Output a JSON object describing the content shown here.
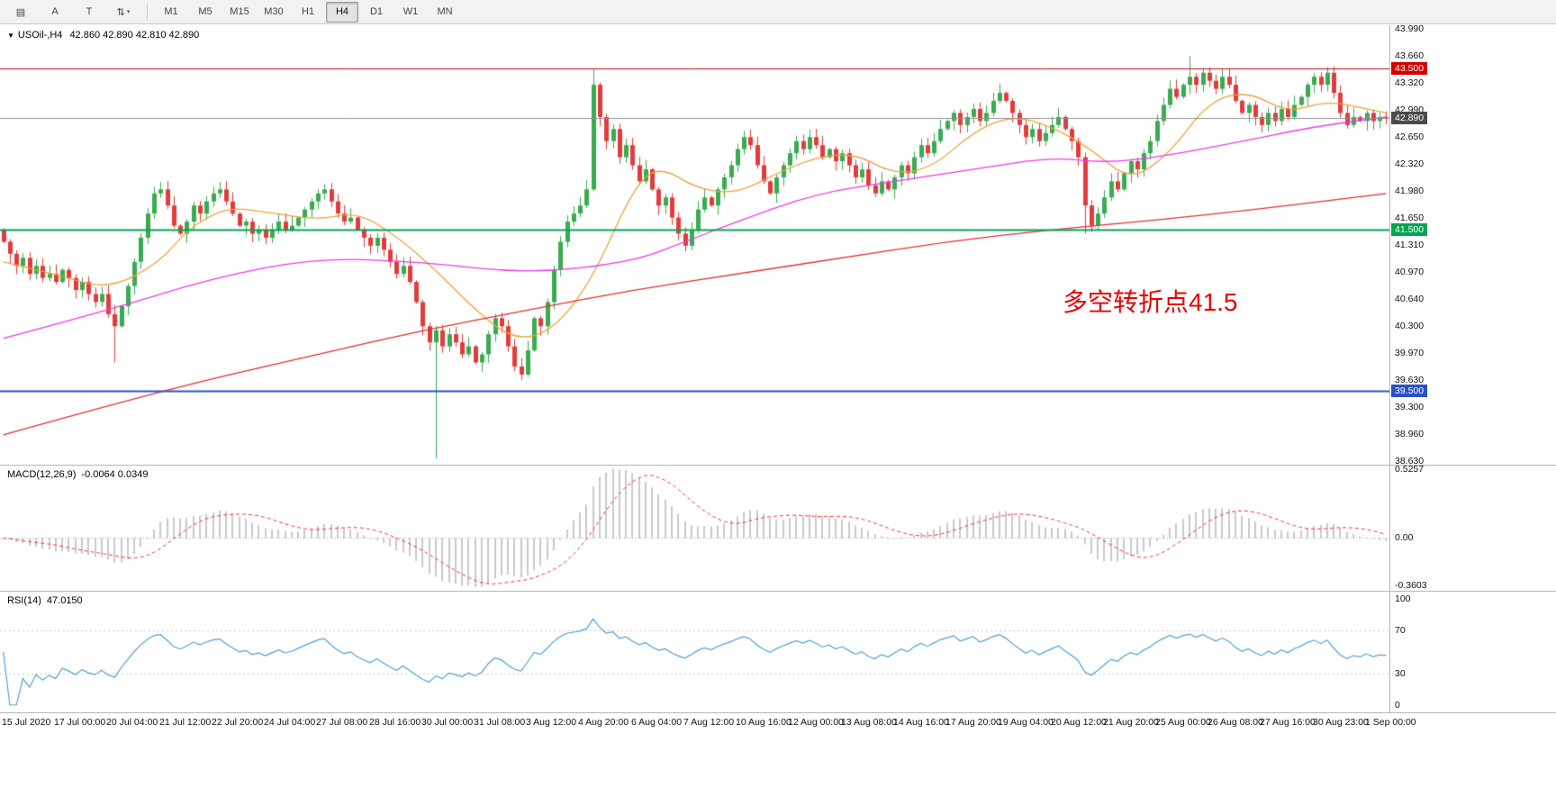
{
  "toolbar": {
    "tools": [
      {
        "name": "chart-grid-icon",
        "glyph": "▤",
        "dropdown": false
      },
      {
        "name": "arrow-tool-button",
        "glyph": "A",
        "dropdown": false
      },
      {
        "name": "text-tool-button",
        "glyph": "T",
        "dropdown": false
      },
      {
        "name": "chart-mode-icon",
        "glyph": "⇅",
        "dropdown": true
      }
    ],
    "timeframes": [
      {
        "label": "M1",
        "active": false
      },
      {
        "label": "M5",
        "active": false
      },
      {
        "label": "M15",
        "active": false
      },
      {
        "label": "M30",
        "active": false
      },
      {
        "label": "H1",
        "active": false
      },
      {
        "label": "H4",
        "active": true
      },
      {
        "label": "D1",
        "active": false
      },
      {
        "label": "W1",
        "active": false
      },
      {
        "label": "MN",
        "active": false
      }
    ]
  },
  "chart": {
    "symbol_period": "USOil-,H4",
    "ohlc": "42.860 42.890 42.810 42.890",
    "annotation": {
      "text": "多空转折点41.5",
      "color": "#e60000"
    },
    "current_price": {
      "price": 42.89,
      "label": "42.890",
      "badge_color": "#4a4a4a"
    }
  },
  "colors": {
    "up": "#3aab50",
    "down": "#e23b3b",
    "ma_fast": "#efa13a",
    "ma_mid": "#e93ce9",
    "ma_slow": "#e03030",
    "macd_hist": "#c9c9c9",
    "macd_signal": "#ff3030",
    "rsi_line": "#4f9fdc",
    "bid_line": "#909090",
    "level_dotted": "#c8c8c8"
  },
  "chart_data": {
    "type": "candlestick",
    "symbol": "USOil",
    "timeframe": "H4",
    "ylim": [
      38.58,
      44.04
    ],
    "first_open": 41.5,
    "closes": [
      41.35,
      41.2,
      41.05,
      41.15,
      40.95,
      41.05,
      40.9,
      40.95,
      40.85,
      41.0,
      40.9,
      40.75,
      40.85,
      40.7,
      40.6,
      40.7,
      40.45,
      40.3,
      40.55,
      40.8,
      41.1,
      41.4,
      41.7,
      41.95,
      42.0,
      41.8,
      41.55,
      41.45,
      41.6,
      41.8,
      41.7,
      41.85,
      41.95,
      42.0,
      41.85,
      41.7,
      41.55,
      41.6,
      41.45,
      41.5,
      41.4,
      41.5,
      41.6,
      41.5,
      41.55,
      41.65,
      41.75,
      41.85,
      41.95,
      42.0,
      41.85,
      41.7,
      41.6,
      41.65,
      41.5,
      41.4,
      41.3,
      41.4,
      41.25,
      41.1,
      40.95,
      41.05,
      40.85,
      40.6,
      40.3,
      40.1,
      40.25,
      40.05,
      40.2,
      40.1,
      39.95,
      40.05,
      39.85,
      39.95,
      40.2,
      40.4,
      40.3,
      40.05,
      39.8,
      39.7,
      40.0,
      40.4,
      40.3,
      40.6,
      41.0,
      41.35,
      41.6,
      41.7,
      41.8,
      42.0,
      43.3,
      42.9,
      42.6,
      42.75,
      42.4,
      42.55,
      42.3,
      42.1,
      42.25,
      42.0,
      41.8,
      41.9,
      41.65,
      41.45,
      41.3,
      41.5,
      41.75,
      41.9,
      41.8,
      42.0,
      42.15,
      42.3,
      42.5,
      42.65,
      42.55,
      42.3,
      42.1,
      41.95,
      42.15,
      42.3,
      42.45,
      42.6,
      42.5,
      42.65,
      42.55,
      42.4,
      42.5,
      42.35,
      42.45,
      42.3,
      42.15,
      42.25,
      42.05,
      41.95,
      42.1,
      42.0,
      42.15,
      42.3,
      42.2,
      42.4,
      42.55,
      42.45,
      42.6,
      42.75,
      42.85,
      42.95,
      42.8,
      42.9,
      43.0,
      42.85,
      42.95,
      43.1,
      43.2,
      43.1,
      42.95,
      42.8,
      42.65,
      42.75,
      42.6,
      42.7,
      42.8,
      42.9,
      42.75,
      42.6,
      42.4,
      41.8,
      41.55,
      41.7,
      41.9,
      42.1,
      42.0,
      42.2,
      42.35,
      42.25,
      42.45,
      42.6,
      42.85,
      43.05,
      43.25,
      43.15,
      43.3,
      43.4,
      43.3,
      43.45,
      43.35,
      43.25,
      43.4,
      43.3,
      43.1,
      42.95,
      43.05,
      42.9,
      42.8,
      42.95,
      42.85,
      43.0,
      42.9,
      43.05,
      43.15,
      43.3,
      43.4,
      43.3,
      43.45,
      43.2,
      42.95,
      42.8,
      42.9,
      42.85,
      42.95,
      42.85,
      42.9,
      42.89
    ],
    "wick_overrides": {
      "17": {
        "low": 39.85
      },
      "66": {
        "low": 38.66
      },
      "79": {
        "low": 39.63
      },
      "90": {
        "high": 43.5
      },
      "165": {
        "low": 41.45
      },
      "181": {
        "high": 43.66
      },
      "202": {
        "high": 43.52
      }
    },
    "ma_lines": [
      {
        "name": "ma-fast-orange",
        "color_key": "ma_fast",
        "width": 1.3,
        "points": [
          [
            0,
            41.1
          ],
          [
            8,
            40.95
          ],
          [
            16,
            40.75
          ],
          [
            24,
            41.1
          ],
          [
            28,
            41.5
          ],
          [
            34,
            41.78
          ],
          [
            40,
            41.72
          ],
          [
            48,
            41.62
          ],
          [
            54,
            41.72
          ],
          [
            60,
            41.42
          ],
          [
            66,
            41.0
          ],
          [
            72,
            40.5
          ],
          [
            78,
            40.12
          ],
          [
            84,
            40.25
          ],
          [
            90,
            40.9
          ],
          [
            96,
            42.0
          ],
          [
            100,
            42.3
          ],
          [
            106,
            42.0
          ],
          [
            112,
            41.95
          ],
          [
            118,
            42.2
          ],
          [
            124,
            42.4
          ],
          [
            130,
            42.45
          ],
          [
            136,
            42.18
          ],
          [
            142,
            42.28
          ],
          [
            148,
            42.72
          ],
          [
            154,
            42.92
          ],
          [
            160,
            42.78
          ],
          [
            166,
            42.5
          ],
          [
            172,
            42.1
          ],
          [
            178,
            42.45
          ],
          [
            184,
            43.1
          ],
          [
            190,
            43.22
          ],
          [
            196,
            42.95
          ],
          [
            202,
            43.1
          ],
          [
            208,
            43.0
          ],
          [
            211,
            42.95
          ]
        ]
      },
      {
        "name": "ma-mid-magenta",
        "color_key": "ma_mid",
        "width": 1.3,
        "points": [
          [
            0,
            40.15
          ],
          [
            16,
            40.5
          ],
          [
            32,
            40.9
          ],
          [
            48,
            41.15
          ],
          [
            64,
            41.1
          ],
          [
            80,
            40.95
          ],
          [
            96,
            41.1
          ],
          [
            104,
            41.35
          ],
          [
            112,
            41.6
          ],
          [
            124,
            41.95
          ],
          [
            136,
            42.1
          ],
          [
            148,
            42.25
          ],
          [
            160,
            42.4
          ],
          [
            168,
            42.33
          ],
          [
            176,
            42.4
          ],
          [
            188,
            42.58
          ],
          [
            200,
            42.78
          ],
          [
            211,
            42.9
          ]
        ]
      },
      {
        "name": "ma-slow-red",
        "color_key": "ma_slow",
        "width": 1.3,
        "points": [
          [
            0,
            38.95
          ],
          [
            24,
            39.5
          ],
          [
            48,
            39.95
          ],
          [
            64,
            40.25
          ],
          [
            80,
            40.5
          ],
          [
            96,
            40.75
          ],
          [
            112,
            40.95
          ],
          [
            128,
            41.15
          ],
          [
            144,
            41.35
          ],
          [
            160,
            41.5
          ],
          [
            176,
            41.62
          ],
          [
            192,
            41.76
          ],
          [
            211,
            41.95
          ]
        ]
      }
    ],
    "hlines": [
      {
        "price": 43.5,
        "color": "#d40000",
        "width": 1,
        "badge": "43.500"
      },
      {
        "price": 41.5,
        "color": "#00a651",
        "width": 2,
        "badge": "41.500"
      },
      {
        "price": 39.5,
        "color": "#2b50c8",
        "width": 2,
        "badge": "39.500"
      }
    ],
    "price_axis_labels": [
      "43.990",
      "43.660",
      "43.320",
      "42.990",
      "42.650",
      "42.320",
      "41.980",
      "41.650",
      "41.310",
      "40.970",
      "40.640",
      "40.300",
      "39.970",
      "39.630",
      "39.300",
      "38.960",
      "38.630"
    ],
    "time_axis_labels": [
      "15 Jul 2020",
      "17 Jul 00:00",
      "20 Jul 04:00",
      "21 Jul 12:00",
      "22 Jul 20:00",
      "24 Jul 04:00",
      "27 Jul 08:00",
      "28 Jul 16:00",
      "30 Jul 00:00",
      "31 Jul 08:00",
      "3 Aug 12:00",
      "4 Aug 20:00",
      "6 Aug 04:00",
      "7 Aug 12:00",
      "10 Aug 16:00",
      "12 Aug 00:00",
      "13 Aug 08:00",
      "14 Aug 16:00",
      "17 Aug 20:00",
      "19 Aug 04:00",
      "20 Aug 12:00",
      "21 Aug 20:00",
      "25 Aug 00:00",
      "26 Aug 08:00",
      "27 Aug 16:00",
      "30 Aug 23:00",
      "1 Sep 00:00"
    ],
    "candles_per_label": 8,
    "indicators": {
      "macd": {
        "label": "MACD(12,26,9)",
        "values_text": "-0.0064 0.0349",
        "fast": 12,
        "slow": 26,
        "signal": 9,
        "scale": [
          {
            "text": "0.5257",
            "value": 0.5257
          },
          {
            "text": "0.00",
            "value": 0.0
          },
          {
            "text": "-0.3603",
            "value": -0.3603
          }
        ],
        "plot_range": [
          -0.4,
          0.55
        ],
        "hist_peak": 0.5257
      },
      "rsi": {
        "label": "RSI(14)",
        "value_text": "47.0150",
        "period": 14,
        "scale": [
          {
            "text": "100",
            "value": 100
          },
          {
            "text": "70",
            "value": 70
          },
          {
            "text": "30",
            "value": 30
          },
          {
            "text": "0",
            "value": 0
          }
        ],
        "levels": [
          70,
          30
        ],
        "plot_range": [
          -7,
          107
        ]
      }
    }
  }
}
